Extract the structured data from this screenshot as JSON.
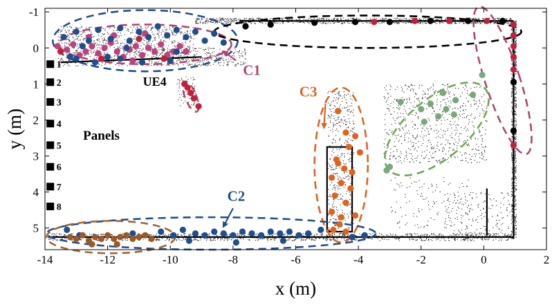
{
  "chart_data": {
    "type": "scatter",
    "xlabel": "x (m)",
    "ylabel": "y (m)",
    "xlim": [
      -14,
      2
    ],
    "ylim": [
      -1.1,
      5.6
    ],
    "y_inverted": true,
    "grid": false,
    "x_ticks": [
      -14,
      -12,
      -10,
      -8,
      -6,
      -4,
      -2,
      0,
      2
    ],
    "x_tick_labels": [
      "-14",
      "-12",
      "-10",
      "-8",
      "-6",
      "-4",
      "-2",
      "0",
      "2"
    ],
    "y_ticks": [
      -1,
      0,
      1,
      2,
      3,
      4,
      5
    ],
    "y_tick_labels": [
      "-1",
      "0",
      "1",
      "2",
      "3",
      "4",
      "5"
    ],
    "colors": {
      "structure": "#000000",
      "crimson": "#c0213a",
      "magenta": "#c03f7d",
      "navy": "#1f4e8c",
      "orange": "#e0621e",
      "sage": "#7aa87a",
      "brown": "#9a5a28",
      "dash_navy": "#1f4e8c",
      "dash_black": "#000000",
      "dash_magenta": "#b0446f",
      "dash_orange": "#e0621e",
      "dash_green": "#6aa84f",
      "dash_brown": "#a5632c"
    },
    "structure_outline": {
      "top_wall_y": -0.75,
      "right_wall_x": 0.95,
      "bottom_wall_y": 5.25,
      "left_wall_x": -13.9,
      "inner_wall_y": 0.4,
      "pillar": {
        "x_min": -5.0,
        "x_max": -4.2,
        "y_min": 2.75,
        "y_max": 5.1
      }
    },
    "panel_markers": {
      "text": "Panels",
      "label_at": [
        -12.2,
        2.55
      ],
      "items": [
        {
          "label": "1",
          "x": -13.83,
          "y": 0.45
        },
        {
          "label": "2",
          "x": -13.83,
          "y": 0.95
        },
        {
          "label": "3",
          "x": -13.83,
          "y": 1.5
        },
        {
          "label": "4",
          "x": -13.83,
          "y": 2.1
        },
        {
          "label": "5",
          "x": -13.83,
          "y": 2.7
        },
        {
          "label": "6",
          "x": -13.83,
          "y": 3.3
        },
        {
          "label": "7",
          "x": -13.83,
          "y": 3.85
        },
        {
          "label": "8",
          "x": -13.83,
          "y": 4.4
        }
      ]
    },
    "clusters": [
      {
        "name": "C1",
        "label_at": [
          -7.4,
          0.75
        ],
        "arrow": [
          [
            -7.9,
            0.35
          ],
          [
            -8.3,
            0.1
          ]
        ],
        "ellipse": {
          "cx": -10.8,
          "cy": -0.1,
          "rx": 2.75,
          "ry": 0.55,
          "color_key": "dash_magenta"
        },
        "series": [
          {
            "name": "C1-magenta",
            "color_key": "magenta",
            "points": [
              [
                -13.6,
                -0.05
              ],
              [
                -13.3,
                0.05
              ],
              [
                -13.1,
                -0.1
              ],
              [
                -12.9,
                0.2
              ],
              [
                -12.7,
                0.1
              ],
              [
                -12.5,
                -0.05
              ],
              [
                -12.3,
                0.15
              ],
              [
                -12.1,
                0.0
              ],
              [
                -11.9,
                -0.15
              ],
              [
                -11.7,
                0.1
              ],
              [
                -11.5,
                0.25
              ],
              [
                -11.3,
                0.05
              ],
              [
                -11.1,
                -0.05
              ],
              [
                -10.9,
                0.2
              ],
              [
                -10.7,
                0.0
              ],
              [
                -10.5,
                0.1
              ],
              [
                -10.3,
                -0.1
              ],
              [
                -10.1,
                0.2
              ],
              [
                -9.9,
                0.1
              ],
              [
                -9.7,
                -0.05
              ],
              [
                -9.5,
                0.1
              ],
              [
                -11.8,
                -0.35
              ],
              [
                -12.6,
                -0.3
              ],
              [
                -10.8,
                -0.4
              ],
              [
                -11.2,
                0.35
              ]
            ]
          },
          {
            "name": "C1-crimson",
            "color_key": "crimson",
            "points": [
              [
                -13.5,
                0.1
              ],
              [
                -12.2,
                0.3
              ],
              [
                -11.0,
                -0.25
              ],
              [
                -10.2,
                0.3
              ]
            ]
          }
        ]
      },
      {
        "name": "C1-top",
        "ellipse": {
          "cx": -10.8,
          "cy": -0.2,
          "rx": 2.95,
          "ry": 0.85,
          "color_key": "dash_navy"
        },
        "series": [
          {
            "name": "top-navy",
            "color_key": "navy",
            "points": [
              [
                -13.4,
                -0.3
              ],
              [
                -13.0,
                -0.45
              ],
              [
                -12.6,
                -0.2
              ],
              [
                -12.3,
                -0.5
              ],
              [
                -11.9,
                -0.25
              ],
              [
                -11.6,
                -0.55
              ],
              [
                -11.3,
                -0.2
              ],
              [
                -11.0,
                -0.45
              ],
              [
                -10.7,
                -0.3
              ],
              [
                -10.4,
                -0.6
              ],
              [
                -10.1,
                -0.35
              ],
              [
                -9.8,
                -0.5
              ],
              [
                -9.5,
                -0.3
              ],
              [
                -9.2,
                -0.45
              ],
              [
                -8.9,
                -0.2
              ],
              [
                -8.6,
                -0.4
              ],
              [
                -8.3,
                -0.15
              ],
              [
                -13.0,
                0.3
              ],
              [
                -12.4,
                0.4
              ],
              [
                -11.6,
                0.3
              ],
              [
                -10.9,
                0.4
              ],
              [
                -10.0,
                0.35
              ],
              [
                -12.8,
                -0.05
              ],
              [
                -11.4,
                0.0
              ],
              [
                -9.8,
                0.1
              ],
              [
                -12.0,
                0.25
              ],
              [
                -13.2,
                0.25
              ]
            ]
          }
        ]
      },
      {
        "name": "top-wall",
        "ellipse": {
          "cx": -3.7,
          "cy": -0.45,
          "rx": 4.9,
          "ry": 0.45,
          "color_key": "dash_black"
        },
        "series": [
          {
            "name": "top-wall-black",
            "color_key": "structure",
            "points": [
              [
                -7.6,
                -0.6
              ],
              [
                -6.8,
                -0.65
              ],
              [
                -5.4,
                -0.7
              ],
              [
                -4.1,
                -0.72
              ],
              [
                -3.0,
                -0.72
              ],
              [
                -1.7,
                -0.75
              ],
              [
                -0.5,
                -0.75
              ],
              [
                0.6,
                -0.75
              ]
            ]
          },
          {
            "name": "top-wall-crimson",
            "color_key": "crimson",
            "points": [
              [
                -3.5,
                -0.72
              ],
              [
                -2.2,
                -0.75
              ],
              [
                -1.1,
                -0.75
              ],
              [
                0.1,
                -0.75
              ]
            ]
          }
        ]
      },
      {
        "name": "right-wall",
        "ellipse": {
          "cx": 0.6,
          "cy": 0.9,
          "rx": 0.55,
          "ry": 2.15,
          "rotate": -18,
          "color_key": "dash_magenta"
        },
        "series": [
          {
            "name": "right-wall-crimson",
            "color_key": "crimson",
            "points": [
              [
                0.95,
                -0.65
              ],
              [
                0.95,
                -0.35
              ],
              [
                0.95,
                -0.05
              ],
              [
                0.95,
                0.25
              ],
              [
                0.95,
                0.6
              ],
              [
                0.95,
                2.7
              ]
            ]
          },
          {
            "name": "right-wall-black",
            "color_key": "structure",
            "points": [
              [
                0.95,
                0.95
              ],
              [
                0.95,
                2.3
              ]
            ]
          }
        ]
      },
      {
        "name": "UE4",
        "label_at": [
          -10.5,
          1.05
        ],
        "ellipse": {
          "cx": -9.35,
          "cy": 1.35,
          "rx": 0.18,
          "ry": 0.45,
          "rotate": -22,
          "color_key": "dash_magenta"
        },
        "series": [
          {
            "name": "UE4-crimson",
            "color_key": "crimson",
            "points": [
              [
                -9.55,
                1.0
              ],
              [
                -9.45,
                1.1
              ],
              [
                -9.35,
                1.25
              ],
              [
                -9.25,
                1.4
              ],
              [
                -9.1,
                1.62
              ]
            ]
          }
        ]
      },
      {
        "name": "C3",
        "label_at": [
          -5.6,
          1.35
        ],
        "arrow": [
          [
            -5.05,
            1.55
          ],
          [
            -5.1,
            2.2
          ]
        ],
        "ellipse": {
          "cx": -4.55,
          "cy": 3.25,
          "rx": 0.85,
          "ry": 2.15,
          "color_key": "dash_orange"
        },
        "series": [
          {
            "name": "C3-orange",
            "color_key": "orange",
            "points": [
              [
                -4.65,
                1.75
              ],
              [
                -4.4,
                2.35
              ],
              [
                -4.1,
                2.45
              ],
              [
                -4.3,
                2.75
              ],
              [
                -3.95,
                2.9
              ],
              [
                -4.7,
                3.1
              ],
              [
                -4.45,
                3.35
              ],
              [
                -4.85,
                3.6
              ],
              [
                -4.55,
                3.75
              ],
              [
                -4.25,
                3.9
              ],
              [
                -4.75,
                4.1
              ],
              [
                -4.4,
                4.3
              ],
              [
                -4.85,
                4.55
              ],
              [
                -4.55,
                4.7
              ],
              [
                -4.1,
                4.65
              ],
              [
                -4.8,
                5.05
              ],
              [
                -4.4,
                5.1
              ],
              [
                -4.65,
                3.2
              ],
              [
                -4.2,
                3.45
              ],
              [
                -4.6,
                4.9
              ]
            ]
          }
        ]
      },
      {
        "name": "sage",
        "ellipse": {
          "cx": -1.5,
          "cy": 2.25,
          "rx": 0.95,
          "ry": 1.75,
          "rotate": 50,
          "color_key": "dash_green"
        },
        "series": [
          {
            "name": "sage-points",
            "color_key": "sage",
            "points": [
              [
                -0.05,
                0.75
              ],
              [
                -0.35,
                1.3
              ],
              [
                -0.9,
                1.45
              ],
              [
                -1.3,
                1.25
              ],
              [
                -1.7,
                1.55
              ],
              [
                -1.45,
                1.9
              ],
              [
                -1.9,
                2.05
              ],
              [
                -0.95,
                1.85
              ],
              [
                -1.2,
                1.7
              ],
              [
                -2.0,
                1.7
              ],
              [
                -2.65,
                1.5
              ],
              [
                -3.0,
                3.3
              ],
              [
                -3.1,
                3.4
              ]
            ]
          }
        ]
      },
      {
        "name": "C2",
        "label_at": [
          -7.9,
          4.25
        ],
        "arrow": [
          [
            -8.0,
            4.45
          ],
          [
            -8.3,
            4.95
          ]
        ],
        "ellipse": {
          "cx": -8.7,
          "cy": 5.15,
          "rx": 5.25,
          "ry": 0.45,
          "color_key": "dash_navy"
        },
        "series": [
          {
            "name": "C2-navy",
            "color_key": "navy",
            "points": [
              [
                -13.3,
                5.05
              ],
              [
                -12.9,
                5.2
              ],
              [
                -11.2,
                5.15
              ],
              [
                -10.3,
                5.1
              ],
              [
                -9.9,
                5.2
              ],
              [
                -9.6,
                5.05
              ],
              [
                -9.2,
                5.15
              ],
              [
                -8.9,
                5.2
              ],
              [
                -8.6,
                5.1
              ],
              [
                -8.3,
                5.15
              ],
              [
                -8.0,
                5.2
              ],
              [
                -7.7,
                5.1
              ],
              [
                -7.4,
                5.15
              ],
              [
                -7.1,
                5.2
              ],
              [
                -6.8,
                5.1
              ],
              [
                -6.5,
                5.15
              ],
              [
                -6.2,
                5.1
              ],
              [
                -5.9,
                5.2
              ],
              [
                -5.6,
                5.15
              ],
              [
                -5.2,
                5.05
              ],
              [
                -4.2,
                5.25
              ],
              [
                -3.8,
                5.2
              ],
              [
                -9.4,
                5.35
              ],
              [
                -7.9,
                5.4
              ],
              [
                -6.4,
                5.35
              ]
            ]
          }
        ]
      },
      {
        "name": "brown",
        "ellipse": {
          "cx": -11.9,
          "cy": 5.25,
          "rx": 2.05,
          "ry": 0.45,
          "color_key": "dash_brown"
        },
        "series": [
          {
            "name": "brown-points",
            "color_key": "brown",
            "points": [
              [
                -13.2,
                5.25
              ],
              [
                -13.0,
                5.3
              ],
              [
                -12.8,
                5.2
              ],
              [
                -12.6,
                5.35
              ],
              [
                -12.4,
                5.25
              ],
              [
                -12.2,
                5.3
              ],
              [
                -12.0,
                5.2
              ],
              [
                -11.8,
                5.3
              ],
              [
                -11.6,
                5.25
              ],
              [
                -11.4,
                5.2
              ],
              [
                -11.2,
                5.3
              ],
              [
                -11.0,
                5.25
              ],
              [
                -10.8,
                5.2
              ],
              [
                -10.6,
                5.3
              ],
              [
                -11.7,
                5.45
              ],
              [
                -12.5,
                5.45
              ]
            ]
          }
        ]
      }
    ]
  }
}
